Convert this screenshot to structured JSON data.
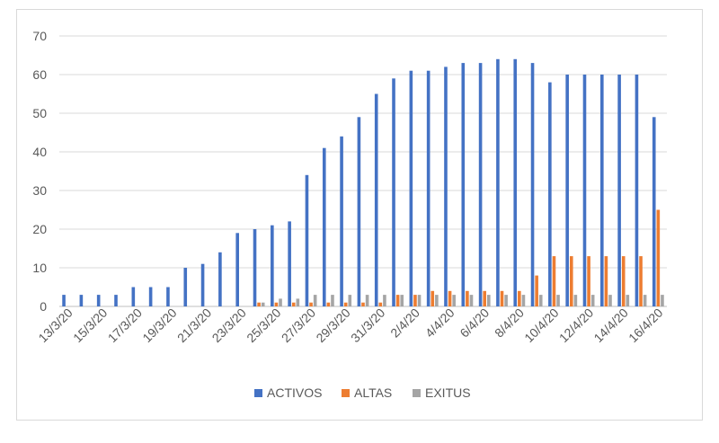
{
  "chart_data": {
    "type": "bar",
    "title": "",
    "xlabel": "",
    "ylabel": "",
    "ylim": [
      0,
      70
    ],
    "yticks": [
      0,
      10,
      20,
      30,
      40,
      50,
      60,
      70
    ],
    "grid": true,
    "legend_position": "bottom",
    "categories": [
      "13/3/20",
      "14/3/20",
      "15/3/20",
      "16/3/20",
      "17/3/20",
      "18/3/20",
      "19/3/20",
      "20/3/20",
      "21/3/20",
      "22/3/20",
      "23/3/20",
      "24/3/20",
      "25/3/20",
      "26/3/20",
      "27/3/20",
      "28/3/20",
      "29/3/20",
      "30/3/20",
      "31/3/20",
      "1/4/20",
      "2/4/20",
      "3/4/20",
      "4/4/20",
      "5/4/20",
      "6/4/20",
      "7/4/20",
      "8/4/20",
      "9/4/20",
      "10/4/20",
      "11/4/20",
      "12/4/20",
      "13/4/20",
      "14/4/20",
      "15/4/20",
      "16/4/20"
    ],
    "tick_labels": [
      "13/3/20",
      "",
      "15/3/20",
      "",
      "17/3/20",
      "",
      "19/3/20",
      "",
      "21/3/20",
      "",
      "23/3/20",
      "",
      "25/3/20",
      "",
      "27/3/20",
      "",
      "29/3/20",
      "",
      "31/3/20",
      "",
      "2/4/20",
      "",
      "4/4/20",
      "",
      "6/4/20",
      "",
      "8/4/20",
      "",
      "10/4/20",
      "",
      "12/4/20",
      "",
      "14/4/20",
      "",
      "16/4/20"
    ],
    "series": [
      {
        "name": "ACTIVOS",
        "color": "#4472c4",
        "values": [
          3,
          3,
          3,
          3,
          5,
          5,
          5,
          10,
          11,
          14,
          19,
          20,
          21,
          22,
          34,
          41,
          44,
          49,
          55,
          59,
          61,
          61,
          62,
          63,
          63,
          64,
          64,
          63,
          58,
          60,
          60,
          60,
          60,
          60,
          49
        ]
      },
      {
        "name": "ALTAS",
        "color": "#ed7d31",
        "values": [
          0,
          0,
          0,
          0,
          0,
          0,
          0,
          0,
          0,
          0,
          0,
          1,
          1,
          1,
          1,
          1,
          1,
          1,
          1,
          3,
          3,
          4,
          4,
          4,
          4,
          4,
          4,
          8,
          13,
          13,
          13,
          13,
          13,
          13,
          25
        ]
      },
      {
        "name": "EXITUS",
        "color": "#a5a5a5",
        "values": [
          0,
          0,
          0,
          0,
          0,
          0,
          0,
          0,
          0,
          0,
          0,
          1,
          2,
          2,
          3,
          3,
          3,
          3,
          3,
          3,
          3,
          3,
          3,
          3,
          3,
          3,
          3,
          3,
          3,
          3,
          3,
          3,
          3,
          3,
          3
        ]
      }
    ]
  }
}
